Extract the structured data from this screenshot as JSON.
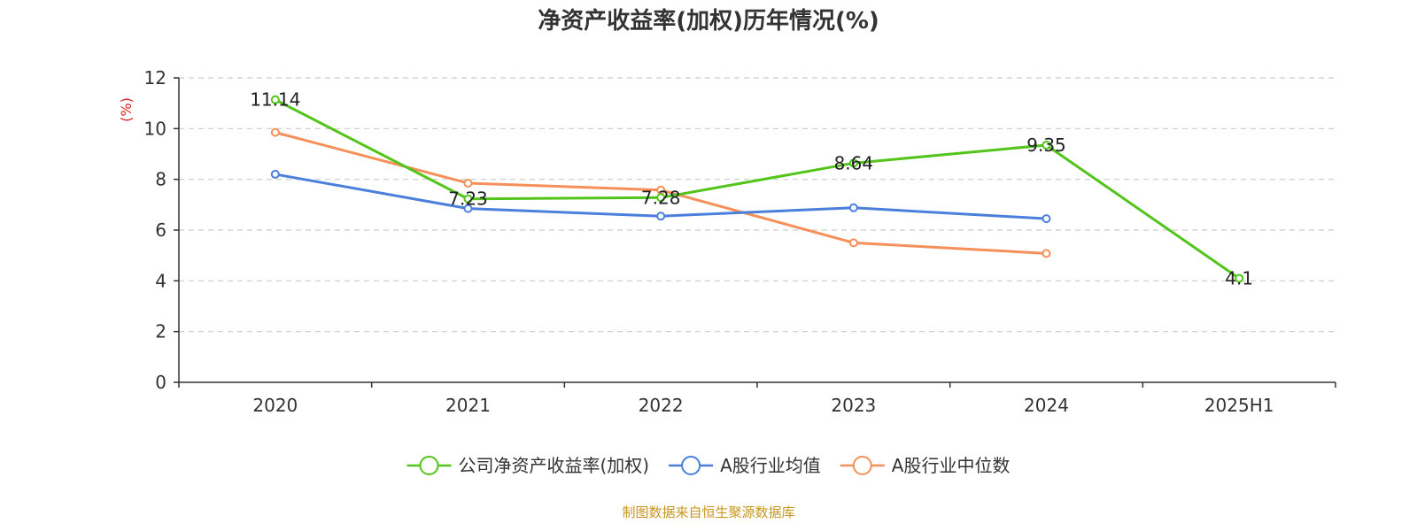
{
  "chart_data": {
    "type": "line",
    "title": "净资产收益率(加权)历年情况(%)",
    "ylabel": "(%)",
    "xlabel": "",
    "categories": [
      "2020",
      "2021",
      "2022",
      "2023",
      "2024",
      "2025H1"
    ],
    "yticks": [
      "0",
      "2",
      "4",
      "6",
      "8",
      "10",
      "12"
    ],
    "ylim": [
      0,
      12
    ],
    "grid": true,
    "legend_position": "bottom",
    "series": [
      {
        "name": "公司净资产收益率(加权)",
        "color": "#52c41a",
        "values": [
          11.14,
          7.23,
          7.28,
          8.64,
          9.35,
          4.1
        ],
        "labels": [
          "11.14",
          "7.23",
          "7.28",
          "8.64",
          "9.35",
          "4.1"
        ]
      },
      {
        "name": "A股行业均值",
        "color": "#4a7fdc",
        "values": [
          8.2,
          6.85,
          6.55,
          6.88,
          6.45,
          null
        ]
      },
      {
        "name": "A股行业中位数",
        "color": "#f5905a",
        "values": [
          9.85,
          7.85,
          7.58,
          5.5,
          5.08,
          null
        ]
      }
    ],
    "source": "制图数据来自恒生聚源数据库",
    "ylabel_color": "#e02020",
    "source_color": "#c8961e"
  }
}
